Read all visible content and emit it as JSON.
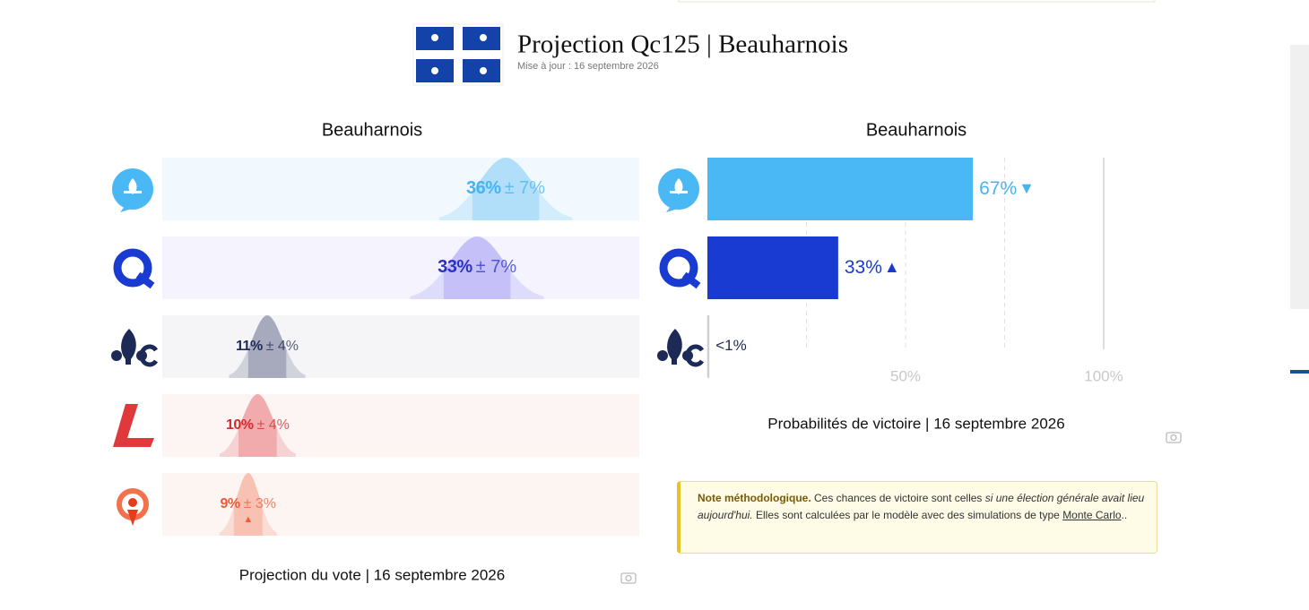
{
  "header": {
    "title": "Projection Qc125 | Beauharnois",
    "updated": "Mise à jour : 16 septembre 2026"
  },
  "vote_chart": {
    "title": "Beauharnois",
    "caption": "Projection du vote | 16 septembre 2026",
    "xlim": [
      0,
      50
    ],
    "rows": [
      {
        "value": 36,
        "value_label": "36%",
        "margin": 7,
        "margin_label": "± 7%",
        "color": "#4ab8f5",
        "text_color": "#44b4f2",
        "background": "#f2f9fe"
      },
      {
        "value": 33,
        "value_label": "33%",
        "margin": 7,
        "margin_label": "± 7%",
        "color": "#7b6ff0",
        "text_color": "#2b2fc7",
        "background": "#f5f4fe"
      },
      {
        "value": 11,
        "value_label": "11%",
        "margin": 4,
        "margin_label": "± 4%",
        "color": "#2b3560",
        "text_color": "#1c2a55",
        "background": "#f5f5f8"
      },
      {
        "value": 10,
        "value_label": "10%",
        "margin": 4,
        "margin_label": "± 4%",
        "color": "#e0393b",
        "text_color": "#d42a2a",
        "background": "#fdf4f4"
      },
      {
        "value": 9,
        "value_label": "9%",
        "margin": 3,
        "margin_label": "± 3%",
        "color": "#f4714f",
        "text_color": "#ee5a35",
        "background": "#fdf5f2",
        "trend": "▲"
      }
    ]
  },
  "win_chart": {
    "title": "Beauharnois",
    "caption": "Probabilités de victoire | 16 septembre 2026",
    "xlim": [
      0,
      100
    ],
    "xticks": [
      {
        "value": 50,
        "label": "50%"
      },
      {
        "value": 100,
        "label": "100%"
      }
    ],
    "grid": [
      25,
      50,
      75,
      100
    ],
    "rows": [
      {
        "value": 67,
        "value_label": "67%",
        "trend": "▼",
        "color": "#4ab8f5",
        "text_color": "#44b4f2"
      },
      {
        "value": 33,
        "value_label": "33%",
        "trend": "▲",
        "color": "#1a3bd1",
        "text_color": "#1a3bd1"
      },
      {
        "value": 0.5,
        "value_label": "<1%",
        "color": "#d0d0d0",
        "text_color": "#1c2a55"
      }
    ]
  },
  "note": {
    "lead": "Note méthodologique.",
    "text1": " Ces chances de victoire sont celles ",
    "emphasis": "si une élection générale avait lieu aujourd'hui.",
    "text2": " Elles sont calculées par le modèle avec des simulations de type ",
    "link": "Monte Carlo",
    "end": ".."
  }
}
